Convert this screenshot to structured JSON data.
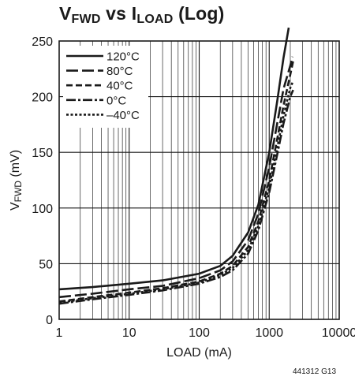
{
  "chart_data": {
    "type": "line",
    "title_main": "V",
    "title_sub1": "FWD",
    "title_mid": " vs I",
    "title_sub2": "LOAD",
    "title_tail": " (Log)",
    "ylabel_main": "V",
    "ylabel_sub": "FWD",
    "ylabel_tail": " (mV)",
    "xlabel": "LOAD (mA)",
    "x_scale": "log",
    "xlim": [
      1,
      10000
    ],
    "ylim": [
      0,
      250
    ],
    "x_ticks": [
      "1",
      "10",
      "100",
      "1000",
      "10000"
    ],
    "y_ticks": [
      "0",
      "50",
      "100",
      "150",
      "200",
      "250"
    ],
    "grid": true,
    "legend_position": "top-left",
    "figure_code": "441312 G13",
    "series": [
      {
        "name": "120°C",
        "style": "solid",
        "x": [
          1,
          3,
          10,
          30,
          100,
          200,
          300,
          500,
          700,
          1000,
          1300,
          1600,
          1900
        ],
        "y": [
          27,
          29,
          32,
          35,
          41,
          48,
          57,
          78,
          103,
          150,
          196,
          235,
          262
        ]
      },
      {
        "name": "80°C",
        "style": "long-dash",
        "x": [
          1,
          3,
          10,
          30,
          100,
          200,
          300,
          500,
          700,
          1000,
          1300,
          1600,
          2000,
          2150
        ],
        "y": [
          20,
          23,
          27,
          30,
          37,
          44,
          52,
          71,
          95,
          137,
          176,
          207,
          228,
          236
        ]
      },
      {
        "name": "40°C",
        "style": "dash",
        "x": [
          1,
          3,
          10,
          30,
          100,
          200,
          300,
          500,
          700,
          1000,
          1300,
          1600,
          2000,
          2200
        ],
        "y": [
          16,
          20,
          24,
          28,
          34,
          41,
          48,
          65,
          88,
          125,
          162,
          192,
          220,
          232
        ]
      },
      {
        "name": "0°C",
        "style": "dash-dot",
        "x": [
          1,
          3,
          10,
          30,
          100,
          200,
          300,
          500,
          700,
          1000,
          1300,
          1600,
          2000,
          2200
        ],
        "y": [
          14,
          18,
          22,
          26,
          32,
          38,
          44,
          59,
          80,
          114,
          148,
          176,
          200,
          206
        ]
      },
      {
        "name": "–40°C",
        "style": "dot",
        "x": [
          1,
          3,
          10,
          30,
          100,
          200,
          300,
          500,
          700,
          1000,
          1300,
          1600,
          2000,
          2200
        ],
        "y": [
          15,
          19,
          23,
          27,
          33,
          40,
          46,
          62,
          84,
          119,
          154,
          183,
          208,
          214
        ]
      }
    ]
  }
}
